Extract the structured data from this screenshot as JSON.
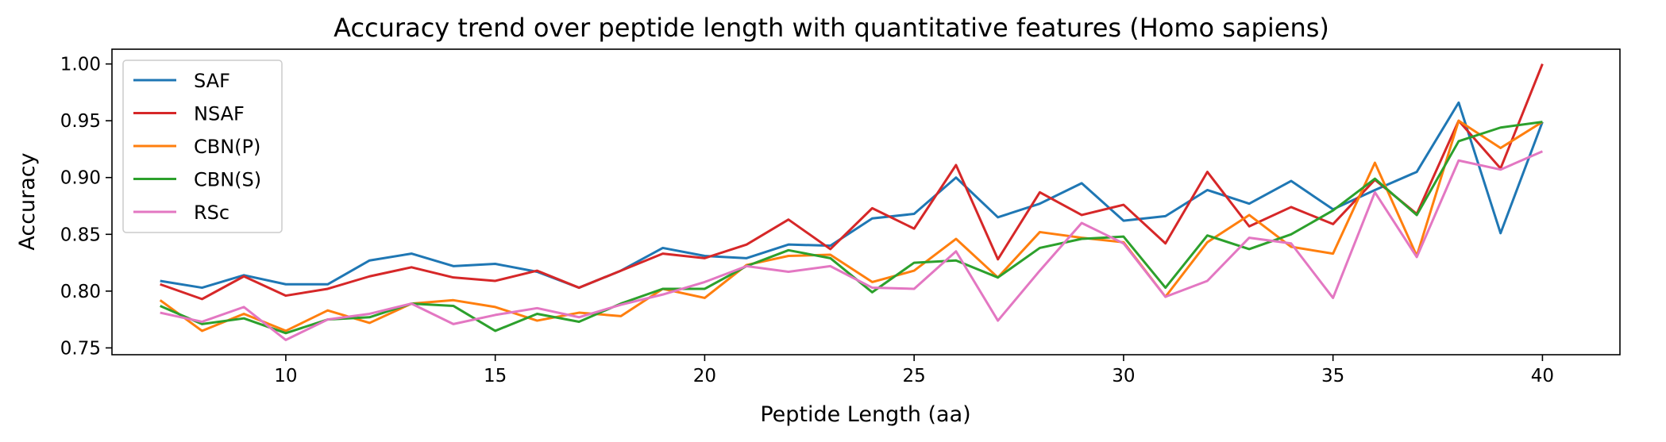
{
  "chart_data": {
    "type": "line",
    "title": "Accuracy trend over peptide length with quantitative features (Homo sapiens)",
    "xlabel": "Peptide Length (aa)",
    "ylabel": "Accuracy",
    "xlim": [
      5.85,
      41.85
    ],
    "ylim": [
      0.744,
      1.013
    ],
    "xticks": [
      10,
      15,
      20,
      25,
      30,
      35,
      40
    ],
    "yticks": [
      0.75,
      0.8,
      0.85,
      0.9,
      0.95,
      1.0
    ],
    "xtick_labels": [
      "10",
      "15",
      "20",
      "25",
      "30",
      "35",
      "40"
    ],
    "ytick_labels": [
      "0.75",
      "0.80",
      "0.85",
      "0.90",
      "0.95",
      "1.00"
    ],
    "grid": false,
    "legend_position": "upper-left",
    "x": [
      7,
      8,
      9,
      10,
      11,
      12,
      13,
      14,
      15,
      16,
      17,
      18,
      19,
      20,
      21,
      22,
      23,
      24,
      25,
      26,
      27,
      28,
      29,
      30,
      31,
      32,
      33,
      34,
      35,
      36,
      37,
      38,
      39,
      40
    ],
    "series": [
      {
        "name": "SAF",
        "color": "#1f77b4",
        "values": [
          0.809,
          0.803,
          0.814,
          0.806,
          0.806,
          0.827,
          0.833,
          0.822,
          0.824,
          0.817,
          0.803,
          0.818,
          0.838,
          0.831,
          0.829,
          0.841,
          0.84,
          0.864,
          0.868,
          0.9,
          0.865,
          0.877,
          0.895,
          0.862,
          0.866,
          0.889,
          0.877,
          0.897,
          0.872,
          0.889,
          0.905,
          0.966,
          0.851,
          0.949
        ]
      },
      {
        "name": "NSAF",
        "color": "#d62728",
        "values": [
          0.806,
          0.793,
          0.813,
          0.796,
          0.802,
          0.813,
          0.821,
          0.812,
          0.809,
          0.818,
          0.803,
          0.818,
          0.833,
          0.829,
          0.841,
          0.863,
          0.837,
          0.873,
          0.855,
          0.911,
          0.828,
          0.887,
          0.867,
          0.876,
          0.842,
          0.905,
          0.857,
          0.874,
          0.859,
          0.898,
          0.868,
          0.95,
          0.908,
          1.0
        ]
      },
      {
        "name": "CBN(P)",
        "color": "#ff7f0e",
        "values": [
          0.792,
          0.765,
          0.78,
          0.765,
          0.783,
          0.772,
          0.789,
          0.792,
          0.786,
          0.774,
          0.781,
          0.778,
          0.802,
          0.794,
          0.823,
          0.831,
          0.832,
          0.808,
          0.818,
          0.846,
          0.812,
          0.852,
          0.847,
          0.843,
          0.795,
          0.843,
          0.867,
          0.839,
          0.833,
          0.913,
          0.831,
          0.95,
          0.926,
          0.949
        ]
      },
      {
        "name": "CBN(S)",
        "color": "#2ca02c",
        "values": [
          0.787,
          0.771,
          0.776,
          0.763,
          0.775,
          0.777,
          0.789,
          0.787,
          0.765,
          0.78,
          0.773,
          0.789,
          0.802,
          0.802,
          0.822,
          0.836,
          0.829,
          0.799,
          0.825,
          0.827,
          0.812,
          0.838,
          0.846,
          0.848,
          0.803,
          0.849,
          0.837,
          0.85,
          0.871,
          0.899,
          0.867,
          0.932,
          0.944,
          0.949
        ]
      },
      {
        "name": "RSc",
        "color": "#e377c2",
        "values": [
          0.781,
          0.773,
          0.786,
          0.757,
          0.775,
          0.78,
          0.789,
          0.771,
          0.779,
          0.785,
          0.777,
          0.788,
          0.797,
          0.808,
          0.822,
          0.817,
          0.822,
          0.803,
          0.802,
          0.835,
          0.774,
          0.818,
          0.86,
          0.842,
          0.795,
          0.809,
          0.847,
          0.842,
          0.794,
          0.887,
          0.83,
          0.915,
          0.907,
          0.923
        ]
      }
    ]
  }
}
